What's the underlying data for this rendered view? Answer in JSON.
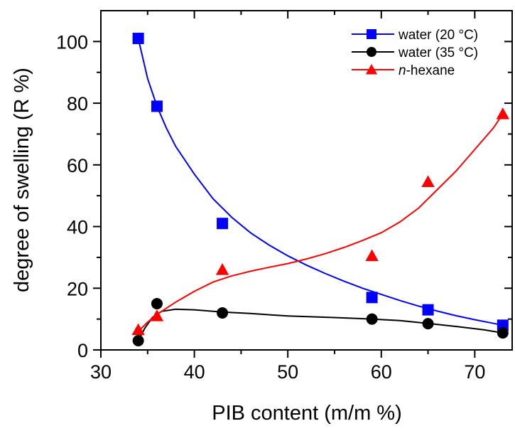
{
  "chart_data": {
    "type": "scatter",
    "xlabel": "PIB content (m/m %)",
    "ylabel": "degree of swelling (R %)",
    "xlim": [
      30,
      74
    ],
    "ylim": [
      0,
      110
    ],
    "xticks": [
      30,
      40,
      50,
      60,
      70
    ],
    "yticks": [
      0,
      20,
      40,
      60,
      80,
      100
    ],
    "legend_position": "top-right",
    "series": [
      {
        "name": "water (20 °C)",
        "marker": "square",
        "color": "#0000ff",
        "x": [
          34,
          36,
          43,
          59,
          65,
          73
        ],
        "y": [
          101,
          79,
          41,
          17,
          13,
          8
        ],
        "fit_curve": [
          [
            34,
            101
          ],
          [
            35,
            88
          ],
          [
            36,
            79
          ],
          [
            37,
            72
          ],
          [
            38,
            66
          ],
          [
            40,
            57
          ],
          [
            42,
            49
          ],
          [
            44,
            43
          ],
          [
            46,
            38
          ],
          [
            48,
            34
          ],
          [
            50,
            30.5
          ],
          [
            52,
            27.5
          ],
          [
            54,
            24.8
          ],
          [
            56,
            22.3
          ],
          [
            58,
            20
          ],
          [
            60,
            18
          ],
          [
            62,
            16
          ],
          [
            64,
            14.2
          ],
          [
            66,
            12.6
          ],
          [
            68,
            11.1
          ],
          [
            70,
            9.8
          ],
          [
            72,
            8.6
          ],
          [
            73,
            8
          ]
        ]
      },
      {
        "name": "water (35 °C)",
        "marker": "circle",
        "color": "#000000",
        "x": [
          34,
          36,
          43,
          59,
          65,
          73
        ],
        "y": [
          3,
          15,
          12,
          10,
          8.5,
          5.5
        ],
        "fit_curve": [
          [
            34,
            3
          ],
          [
            34.7,
            7
          ],
          [
            35.5,
            10.5
          ],
          [
            36.5,
            12.5
          ],
          [
            38,
            13.2
          ],
          [
            40,
            13
          ],
          [
            43,
            12.3
          ],
          [
            46,
            11.8
          ],
          [
            50,
            11
          ],
          [
            55,
            10.5
          ],
          [
            59,
            10
          ],
          [
            62,
            9.5
          ],
          [
            65,
            8.6
          ],
          [
            68,
            7.6
          ],
          [
            71,
            6.5
          ],
          [
            73,
            5.5
          ]
        ]
      },
      {
        "name": "n-hexane",
        "name_italic_part": "n",
        "name_rest": "-hexane",
        "marker": "triangle",
        "color": "#ff0000",
        "x": [
          34,
          36,
          43,
          59,
          65,
          73
        ],
        "y": [
          6.5,
          11,
          26,
          30.5,
          54.5,
          76.5
        ],
        "fit_curve": [
          [
            34,
            6
          ],
          [
            35,
            9
          ],
          [
            36,
            11.5
          ],
          [
            38,
            15.5
          ],
          [
            40,
            19
          ],
          [
            42,
            22
          ],
          [
            44,
            24
          ],
          [
            46,
            25.5
          ],
          [
            48,
            26.8
          ],
          [
            50,
            28
          ],
          [
            52,
            29.5
          ],
          [
            54,
            31.2
          ],
          [
            56,
            33.2
          ],
          [
            58,
            35.5
          ],
          [
            60,
            38
          ],
          [
            62,
            41.5
          ],
          [
            64,
            46
          ],
          [
            66,
            52
          ],
          [
            68,
            58
          ],
          [
            70,
            65
          ],
          [
            72,
            72
          ],
          [
            73,
            76.5
          ]
        ]
      }
    ]
  }
}
